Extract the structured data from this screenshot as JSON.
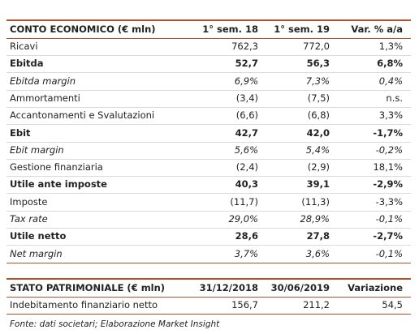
{
  "income_table": {
    "header": [
      "CONTO ECONOMICO (€ mln)",
      "1° sem. 18",
      "1° sem. 19",
      "Var. % a/a"
    ],
    "rows": [
      [
        "Ricavi",
        "762,3",
        "772,0",
        "1,3%"
      ],
      [
        "Ebitda",
        "52,7",
        "56,3",
        "6,8%"
      ],
      [
        "Ebitda margin",
        "6,9%",
        "7,3%",
        "0,4%"
      ],
      [
        "Ammortamenti",
        "(3,4)",
        "(7,5)",
        "n.s."
      ],
      [
        "Accantonamenti e Svalutazioni",
        "(6,6)",
        "(6,8)",
        "3,3%"
      ],
      [
        "Ebit",
        "42,7",
        "42,0",
        "-1,7%"
      ],
      [
        "Ebit margin",
        "5,6%",
        "5,4%",
        "-0,2%"
      ],
      [
        "Gestione finanziaria",
        "(2,4)",
        "(2,9)",
        "18,1%"
      ],
      [
        "Utile ante imposte",
        "40,3",
        "39,1",
        "-2,9%"
      ],
      [
        "Imposte",
        "(11,7)",
        "(11,3)",
        "-3,3%"
      ],
      [
        "Tax rate",
        "29,0%",
        "28,9%",
        "-0,1%"
      ],
      [
        "Utile netto",
        "28,6",
        "27,8",
        "-2,7%"
      ],
      [
        "Net margin",
        "3,7%",
        "3,6%",
        "-0,1%"
      ]
    ]
  },
  "balance_table": {
    "header": [
      "STATO PATRIMONIALE (€ mln)",
      "31/12/2018",
      "30/06/2019",
      "Variazione"
    ],
    "rows": [
      [
        "Indebitamento finanziario netto",
        "156,7",
        "211,2",
        "54,5"
      ]
    ]
  },
  "footer": "Fonte: dati societari; Elaborazione Market Insight"
}
